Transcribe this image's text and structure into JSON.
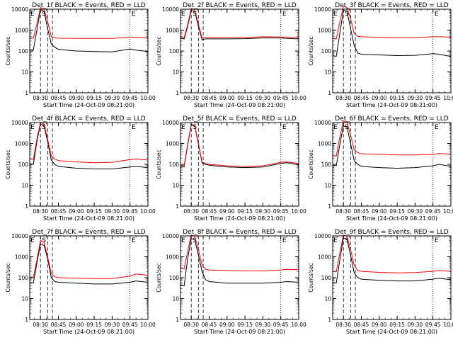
{
  "colors": {
    "background": "#ffffff",
    "events": "#000000",
    "lld": "#ff0000",
    "axes": "#000000"
  },
  "common": {
    "xlabel": "Start Time (24-Oct-09 08:21:00)",
    "ylabel": "Counts/sec",
    "x_tick_labels": [
      "08:30",
      "08:45",
      "09:00",
      "09:15",
      "09:30",
      "09:45",
      "10:00"
    ],
    "y_tick_labels": [
      "1",
      "10",
      "100",
      "1000",
      "10000"
    ],
    "region_labels": [
      "E",
      "S",
      "E"
    ]
  },
  "chart_data": [
    {
      "type": "line",
      "title": "Det_1f BLACK = Events, RED = LLD",
      "x": [
        "08:21",
        "08:24",
        "08:27",
        "08:30",
        "08:33",
        "08:36",
        "08:39",
        "08:42",
        "08:45",
        "09:00",
        "09:15",
        "09:30",
        "09:45",
        "09:50",
        "10:00"
      ],
      "series": [
        {
          "values": [
            120,
            110,
            1000,
            9500,
            8000,
            1200,
            220,
            150,
            120,
            100,
            95,
            90,
            125,
            110,
            95
          ]
        },
        {
          "values": [
            420,
            410,
            2000,
            12000,
            10000,
            2600,
            500,
            420,
            410,
            400,
            400,
            400,
            460,
            450,
            430
          ]
        }
      ],
      "xlim": [
        "08:21",
        "10:00"
      ],
      "ylim": [
        1,
        10000
      ],
      "yscale": "log",
      "vlines_dashed": [
        "08:30",
        "08:36",
        "08:40"
      ],
      "vlines_dotted": [
        "09:45",
        "10:00"
      ]
    },
    {
      "type": "line",
      "title": "Det_2f BLACK = Events, RED = LLD",
      "x": [
        "08:21",
        "08:24",
        "08:27",
        "08:30",
        "08:33",
        "08:36",
        "08:39",
        "08:42",
        "08:45",
        "09:00",
        "09:15",
        "09:30",
        "09:45",
        "09:50",
        "10:00"
      ],
      "series": [
        {
          "values": [
            400,
            380,
            1500,
            9000,
            7500,
            1500,
            350,
            380,
            380,
            380,
            390,
            420,
            420,
            400,
            380
          ]
        },
        {
          "values": [
            460,
            440,
            1800,
            11000,
            9000,
            1900,
            420,
            450,
            440,
            440,
            440,
            480,
            470,
            460,
            440
          ]
        }
      ],
      "xlim": [
        "08:21",
        "10:00"
      ],
      "ylim": [
        1,
        10000
      ],
      "yscale": "log",
      "vlines_dashed": [
        "08:30",
        "08:36",
        "08:40"
      ],
      "vlines_dotted": [
        "09:45",
        "10:00"
      ]
    },
    {
      "type": "line",
      "title": "Det_3f BLACK = Events, RED = LLD",
      "x": [
        "08:21",
        "08:24",
        "08:27",
        "08:30",
        "08:33",
        "08:36",
        "08:39",
        "08:42",
        "08:45",
        "09:00",
        "09:15",
        "09:30",
        "09:45",
        "09:50",
        "10:00"
      ],
      "series": [
        {
          "values": [
            60,
            55,
            700,
            9000,
            8000,
            1200,
            180,
            80,
            70,
            65,
            60,
            62,
            75,
            70,
            55
          ]
        },
        {
          "values": [
            400,
            380,
            2500,
            14000,
            12000,
            3500,
            700,
            500,
            480,
            450,
            430,
            430,
            480,
            480,
            460
          ]
        }
      ],
      "xlim": [
        "08:21",
        "10:00"
      ],
      "ylim": [
        1,
        10000
      ],
      "yscale": "log",
      "vlines_dashed": [
        "08:30",
        "08:36",
        "08:40"
      ],
      "vlines_dotted": [
        "09:45",
        "10:00"
      ]
    },
    {
      "type": "line",
      "title": "Det_4f BLACK = Events, RED = LLD",
      "x": [
        "08:21",
        "08:24",
        "08:27",
        "08:30",
        "08:33",
        "08:36",
        "08:39",
        "08:42",
        "08:45",
        "09:00",
        "09:15",
        "09:30",
        "09:45",
        "09:50",
        "10:00"
      ],
      "series": [
        {
          "values": [
            110,
            100,
            1200,
            8500,
            7000,
            1200,
            160,
            100,
            80,
            65,
            60,
            60,
            75,
            80,
            70
          ]
        },
        {
          "values": [
            180,
            170,
            1600,
            10000,
            8500,
            1600,
            250,
            180,
            150,
            130,
            120,
            125,
            170,
            180,
            160
          ]
        }
      ],
      "xlim": [
        "08:21",
        "10:00"
      ],
      "ylim": [
        1,
        10000
      ],
      "yscale": "log",
      "vlines_dashed": [
        "08:30",
        "08:36",
        "08:40"
      ],
      "vlines_dotted": [
        "09:45",
        "10:00"
      ]
    },
    {
      "type": "line",
      "title": "Det_5f BLACK = Events, RED = LLD",
      "x": [
        "08:21",
        "08:24",
        "08:27",
        "08:30",
        "08:33",
        "08:36",
        "08:39",
        "08:42",
        "08:45",
        "09:00",
        "09:15",
        "09:30",
        "09:45",
        "09:50",
        "10:00"
      ],
      "series": [
        {
          "values": [
            80,
            75,
            800,
            8000,
            6500,
            900,
            120,
            100,
            90,
            75,
            70,
            75,
            110,
            120,
            95
          ]
        },
        {
          "values": [
            90,
            85,
            900,
            8500,
            7000,
            1000,
            130,
            110,
            100,
            85,
            80,
            85,
            125,
            130,
            110
          ]
        }
      ],
      "xlim": [
        "08:21",
        "10:00"
      ],
      "ylim": [
        1,
        10000
      ],
      "yscale": "log",
      "vlines_dashed": [
        "08:30",
        "08:36",
        "08:40"
      ],
      "vlines_dotted": [
        "09:45",
        "10:00"
      ]
    },
    {
      "type": "line",
      "title": "Det_6f BLACK = Events, RED = LLD",
      "x": [
        "08:21",
        "08:24",
        "08:27",
        "08:30",
        "08:33",
        "08:36",
        "08:39",
        "08:42",
        "08:45",
        "09:00",
        "09:15",
        "09:30",
        "09:45",
        "09:50",
        "10:00"
      ],
      "series": [
        {
          "values": [
            90,
            85,
            900,
            7000,
            6000,
            1000,
            150,
            100,
            80,
            70,
            65,
            70,
            85,
            100,
            80
          ]
        },
        {
          "values": [
            260,
            250,
            2000,
            12000,
            10000,
            2500,
            500,
            360,
            320,
            300,
            280,
            280,
            300,
            330,
            310
          ]
        }
      ],
      "xlim": [
        "08:21",
        "10:00"
      ],
      "ylim": [
        1,
        10000
      ],
      "yscale": "log",
      "vlines_dashed": [
        "08:30",
        "08:36",
        "08:40"
      ],
      "vlines_dotted": [
        "09:45",
        "10:00"
      ]
    },
    {
      "type": "line",
      "title": "Det_7f BLACK = Events, RED = LLD",
      "x": [
        "08:21",
        "08:24",
        "08:27",
        "08:30",
        "08:33",
        "08:36",
        "08:39",
        "08:42",
        "08:45",
        "09:00",
        "09:15",
        "09:30",
        "09:45",
        "09:50",
        "10:00"
      ],
      "series": [
        {
          "values": [
            60,
            55,
            500,
            4000,
            3500,
            800,
            100,
            65,
            60,
            55,
            50,
            50,
            60,
            70,
            60
          ]
        },
        {
          "values": [
            110,
            100,
            700,
            6000,
            5000,
            1000,
            160,
            110,
            100,
            95,
            90,
            90,
            120,
            150,
            130
          ]
        }
      ],
      "xlim": [
        "08:21",
        "10:00"
      ],
      "ylim": [
        1,
        10000
      ],
      "yscale": "log",
      "vlines_dashed": [
        "08:30",
        "08:36",
        "08:40"
      ],
      "vlines_dotted": [
        "09:45",
        "10:00"
      ]
    },
    {
      "type": "line",
      "title": "Det_8f BLACK = Events, RED = LLD",
      "x": [
        "08:21",
        "08:24",
        "08:27",
        "08:30",
        "08:33",
        "08:36",
        "08:39",
        "08:42",
        "08:45",
        "09:00",
        "09:15",
        "09:30",
        "09:45",
        "09:50",
        "10:00"
      ],
      "series": [
        {
          "values": [
            45,
            40,
            800,
            7500,
            6500,
            1200,
            200,
            80,
            65,
            55,
            55,
            55,
            60,
            65,
            60
          ]
        },
        {
          "values": [
            280,
            260,
            1800,
            11000,
            9500,
            2200,
            400,
            250,
            230,
            220,
            210,
            210,
            230,
            250,
            240
          ]
        }
      ],
      "xlim": [
        "08:21",
        "10:00"
      ],
      "ylim": [
        1,
        10000
      ],
      "yscale": "log",
      "vlines_dashed": [
        "08:30",
        "08:36",
        "08:40"
      ],
      "vlines_dotted": [
        "09:45",
        "10:00"
      ]
    },
    {
      "type": "line",
      "title": "Det_9f BLACK = Events, RED = LLD",
      "x": [
        "08:21",
        "08:24",
        "08:27",
        "08:30",
        "08:33",
        "08:36",
        "08:39",
        "08:42",
        "08:45",
        "09:00",
        "09:15",
        "09:30",
        "09:45",
        "09:50",
        "10:00"
      ],
      "series": [
        {
          "values": [
            60,
            55,
            700,
            8000,
            7000,
            1200,
            170,
            100,
            85,
            75,
            70,
            70,
            85,
            95,
            80
          ]
        },
        {
          "values": [
            200,
            190,
            1500,
            11000,
            9500,
            2200,
            400,
            220,
            200,
            180,
            170,
            175,
            200,
            220,
            200
          ]
        }
      ],
      "xlim": [
        "08:21",
        "10:00"
      ],
      "ylim": [
        1,
        10000
      ],
      "yscale": "log",
      "vlines_dashed": [
        "08:30",
        "08:36",
        "08:40"
      ],
      "vlines_dotted": [
        "09:45",
        "10:00"
      ]
    }
  ]
}
